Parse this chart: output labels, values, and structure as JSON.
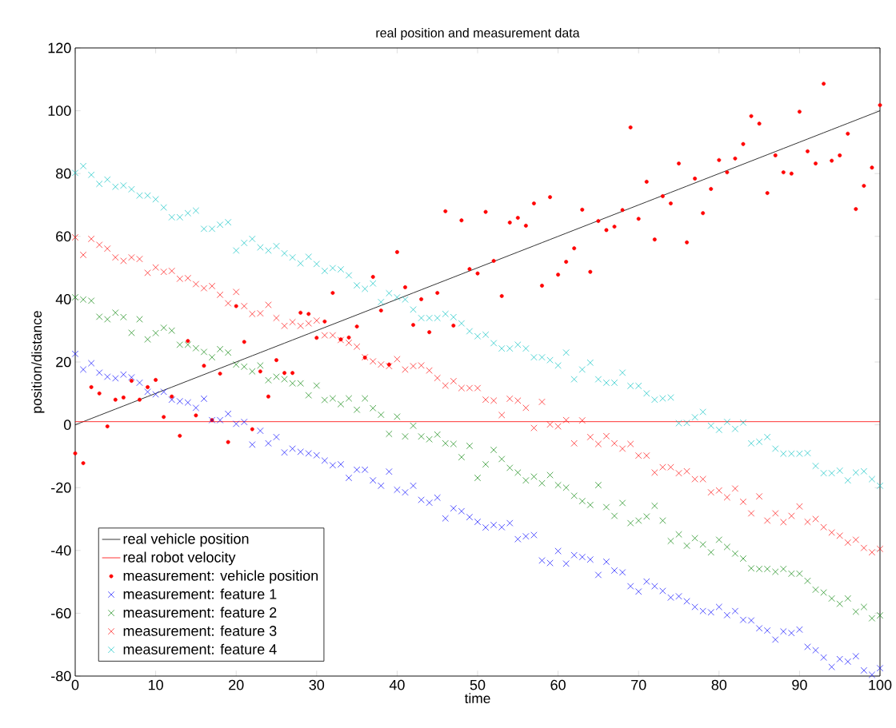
{
  "chart_data": {
    "type": "scatter",
    "title": "real position and measurement data",
    "xlabel": "time",
    "ylabel": "position/distance",
    "xlim": [
      0,
      100
    ],
    "ylim": [
      -80,
      120
    ],
    "xticks": [
      0,
      10,
      20,
      30,
      40,
      50,
      60,
      70,
      80,
      90,
      100
    ],
    "yticks": [
      -80,
      -60,
      -40,
      -20,
      0,
      20,
      40,
      60,
      80,
      100,
      120
    ],
    "legend": "bottom left",
    "x": [
      0,
      1,
      2,
      3,
      4,
      5,
      6,
      7,
      8,
      9,
      10,
      11,
      12,
      13,
      14,
      15,
      16,
      17,
      18,
      19,
      20,
      21,
      22,
      23,
      24,
      25,
      26,
      27,
      28,
      29,
      30,
      31,
      32,
      33,
      34,
      35,
      36,
      37,
      38,
      39,
      40,
      41,
      42,
      43,
      44,
      45,
      46,
      47,
      48,
      49,
      50,
      51,
      52,
      53,
      54,
      55,
      56,
      57,
      58,
      59,
      60,
      61,
      62,
      63,
      64,
      65,
      66,
      67,
      68,
      69,
      70,
      71,
      72,
      73,
      74,
      75,
      76,
      77,
      78,
      79,
      80,
      81,
      82,
      83,
      84,
      85,
      86,
      87,
      88,
      89,
      90,
      91,
      92,
      93,
      94,
      95,
      96,
      97,
      98,
      99,
      100
    ],
    "series": [
      {
        "name": "real vehicle position",
        "type": "line",
        "color": "#000000",
        "marker": "none",
        "values": [
          0,
          1,
          2,
          3,
          4,
          5,
          6,
          7,
          8,
          9,
          10,
          11,
          12,
          13,
          14,
          15,
          16,
          17,
          18,
          19,
          20,
          21,
          22,
          23,
          24,
          25,
          26,
          27,
          28,
          29,
          30,
          31,
          32,
          33,
          34,
          35,
          36,
          37,
          38,
          39,
          40,
          41,
          42,
          43,
          44,
          45,
          46,
          47,
          48,
          49,
          50,
          51,
          52,
          53,
          54,
          55,
          56,
          57,
          58,
          59,
          60,
          61,
          62,
          63,
          64,
          65,
          66,
          67,
          68,
          69,
          70,
          71,
          72,
          73,
          74,
          75,
          76,
          77,
          78,
          79,
          80,
          81,
          82,
          83,
          84,
          85,
          86,
          87,
          88,
          89,
          90,
          91,
          92,
          93,
          94,
          95,
          96,
          97,
          98,
          99,
          100
        ]
      },
      {
        "name": "real robot velocity",
        "type": "line",
        "color": "#ff0000",
        "marker": "none",
        "values": [
          1,
          1,
          1,
          1,
          1,
          1,
          1,
          1,
          1,
          1,
          1,
          1,
          1,
          1,
          1,
          1,
          1,
          1,
          1,
          1,
          1,
          1,
          1,
          1,
          1,
          1,
          1,
          1,
          1,
          1,
          1,
          1,
          1,
          1,
          1,
          1,
          1,
          1,
          1,
          1,
          1,
          1,
          1,
          1,
          1,
          1,
          1,
          1,
          1,
          1,
          1,
          1,
          1,
          1,
          1,
          1,
          1,
          1,
          1,
          1,
          1,
          1,
          1,
          1,
          1,
          1,
          1,
          1,
          1,
          1,
          1,
          1,
          1,
          1,
          1,
          1,
          1,
          1,
          1,
          1,
          1,
          1,
          1,
          1,
          1,
          1,
          1,
          1,
          1,
          1,
          1,
          1,
          1,
          1,
          1,
          1,
          1,
          1,
          1,
          1,
          1
        ]
      },
      {
        "name": "measurement: vehicle position",
        "type": "scatter",
        "color": "#ff0000",
        "marker": "circle",
        "values": [
          -9.1,
          -12.2,
          12,
          10,
          -0.5,
          8,
          8.7,
          14,
          8,
          12,
          14.3,
          2.5,
          9,
          -3.5,
          26.7,
          3,
          18.8,
          1.5,
          16.3,
          -5.5,
          37.8,
          26.4,
          -1.4,
          17,
          9,
          20.6,
          16.5,
          16.5,
          35.7,
          35.3,
          27.7,
          32.9,
          42,
          27.2,
          27.8,
          31.3,
          21.4,
          47.1,
          36.4,
          19.2,
          55,
          43.8,
          31.8,
          40,
          29.5,
          42,
          68,
          31.6,
          65.1,
          49.6,
          48.2,
          67.8,
          52.2,
          41,
          64.4,
          65.9,
          63.4,
          70.5,
          44.3,
          72.5,
          47.8,
          51.9,
          56.2,
          68.5,
          48.7,
          64.9,
          62,
          63.1,
          68.4,
          94.7,
          65.6,
          77.4,
          59,
          72.8,
          70.5,
          83.2,
          58.1,
          78.4,
          67.4,
          75.1,
          84.3,
          80.4,
          84.8,
          89.4,
          98.3,
          95.9,
          73.8,
          85.8,
          80.4,
          80,
          99.7,
          87.1,
          83.2,
          108.6,
          84.1,
          85.8,
          92.7,
          68.7,
          76.1,
          81.9,
          101.8
        ]
      },
      {
        "name": "measurement: feature 1",
        "type": "scatter",
        "color": "#0000ff",
        "marker": "cross",
        "values": [
          22.6,
          17.6,
          19.6,
          16.6,
          15.3,
          14.8,
          16,
          15.1,
          13.4,
          10.5,
          9.7,
          10.5,
          8,
          7.5,
          7.1,
          5.4,
          8.3,
          1.5,
          1.5,
          3.5,
          0.3,
          0.9,
          -6.3,
          -1.9,
          -5.9,
          -3.9,
          -8.8,
          -7.6,
          -8.6,
          -9.1,
          -9.7,
          -11.4,
          -12.9,
          -12.6,
          -16.9,
          -14.3,
          -14.3,
          -17.7,
          -19.4,
          -14.9,
          -20.7,
          -21.5,
          -19.4,
          -23.9,
          -24.8,
          -23.2,
          -29.8,
          -26.6,
          -27.5,
          -29.4,
          -30.9,
          -32.7,
          -31.9,
          -32.6,
          -31.3,
          -36.4,
          -35.5,
          -35.1,
          -43.2,
          -44,
          -40.2,
          -44.2,
          -41.5,
          -42.1,
          -42.9,
          -47.8,
          -43.6,
          -46.4,
          -47,
          -51.4,
          -53.1,
          -49.9,
          -51.4,
          -52.9,
          -55,
          -54.6,
          -56.2,
          -58,
          -59.3,
          -59.7,
          -58,
          -60.6,
          -59.3,
          -62.1,
          -62.3,
          -64.8,
          -65.5,
          -68.4,
          -65.8,
          -66.3,
          -65.2,
          -70.7,
          -71.8,
          -74.1,
          -77.1,
          -74.6,
          -75.4,
          -73.7,
          -78.2,
          -79.6,
          -77.5
        ]
      },
      {
        "name": "measurement: feature 2",
        "type": "scatter",
        "color": "#008000",
        "marker": "cross",
        "values": [
          40.6,
          39.9,
          39.5,
          34.4,
          33.6,
          35.7,
          34.3,
          29.3,
          33.6,
          27.2,
          29.2,
          30.9,
          30,
          25.5,
          25.5,
          24.4,
          23.2,
          21.5,
          24.1,
          23,
          19.2,
          18.5,
          17,
          18.9,
          14.2,
          15.3,
          14.5,
          13.2,
          13.2,
          9.4,
          12.5,
          7.9,
          8.4,
          6.6,
          8.4,
          4.8,
          8.4,
          5.3,
          3.2,
          -2.9,
          2.6,
          -3.7,
          -0.3,
          -3.7,
          -4.6,
          -3.1,
          -5.9,
          -6.1,
          -10.3,
          -6.7,
          -16.9,
          -12.6,
          -8,
          -10.9,
          -13.7,
          -15.2,
          -17.7,
          -16.5,
          -18.6,
          -16,
          -19.2,
          -20,
          -22.6,
          -24.3,
          -25.5,
          -19.2,
          -26.2,
          -29,
          -24.9,
          -31.3,
          -30.5,
          -29.2,
          -25.8,
          -30.5,
          -37,
          -34.9,
          -38.5,
          -36.1,
          -38.1,
          -40.6,
          -36.6,
          -38.9,
          -41,
          -42.6,
          -45.7,
          -45.9,
          -45.9,
          -46.8,
          -45.9,
          -47.4,
          -47.4,
          -49.7,
          -52.5,
          -53.4,
          -55.3,
          -57,
          -55.3,
          -59.5,
          -58,
          -61.6,
          -60.7
        ]
      },
      {
        "name": "measurement: feature 3",
        "type": "scatter",
        "color": "#ff0000",
        "marker": "cross",
        "values": [
          59.7,
          54.1,
          59.2,
          57.3,
          56.1,
          53.3,
          52.2,
          53.3,
          52.8,
          48.4,
          50.1,
          48.7,
          49,
          46.5,
          46.7,
          44.8,
          43.5,
          44.2,
          41.4,
          38.7,
          42.3,
          37.8,
          35.3,
          35.5,
          38.2,
          34,
          31.5,
          32.7,
          31.5,
          32.3,
          33.2,
          28.5,
          28.5,
          27,
          26.1,
          24.9,
          21.5,
          20.2,
          19.2,
          18.7,
          20.9,
          17.6,
          18.7,
          18.9,
          17.3,
          14.9,
          12.5,
          13.9,
          11.7,
          11.7,
          11.7,
          8,
          7.7,
          3.1,
          8.3,
          7.7,
          5.4,
          -1,
          7.3,
          0.1,
          -0.5,
          1.5,
          -5.9,
          1.4,
          -3.9,
          -6.1,
          -3.6,
          -5.9,
          -7.6,
          -6.1,
          -9.8,
          -9.8,
          -15.2,
          -13.5,
          -13.5,
          -15.4,
          -14.8,
          -17.3,
          -17.3,
          -21.5,
          -20.9,
          -23.1,
          -20.3,
          -24.5,
          -28.2,
          -22.8,
          -30.5,
          -28.2,
          -31,
          -29,
          -26,
          -30.9,
          -30,
          -32.6,
          -34.3,
          -35.3,
          -37.5,
          -36.6,
          -39.2,
          -40.6,
          -39.5
        ]
      },
      {
        "name": "measurement: feature 4",
        "type": "scatter",
        "color": "#00bfbf",
        "marker": "cross",
        "values": [
          80.2,
          82.4,
          79.6,
          76.7,
          78.1,
          75.8,
          76.2,
          75,
          73,
          73,
          71.8,
          69.2,
          66.1,
          66.1,
          67.4,
          68.2,
          62.4,
          62.4,
          63.7,
          64.5,
          55.5,
          57.9,
          59.2,
          56.5,
          55.5,
          56.9,
          54.6,
          53.3,
          51.4,
          53.5,
          51.2,
          49,
          49.9,
          49.5,
          47.6,
          44.4,
          43.3,
          45,
          39.1,
          41.9,
          40.6,
          39.9,
          36.7,
          34,
          34,
          34,
          35.3,
          34.3,
          32.3,
          29.8,
          28.2,
          28.7,
          26,
          24.3,
          24.3,
          25.5,
          24.3,
          21.5,
          21.5,
          20.6,
          18.9,
          23,
          14.5,
          17.6,
          19.8,
          14.5,
          13.4,
          13.4,
          16.6,
          12.4,
          12.4,
          10,
          8,
          8.4,
          8.7,
          0.5,
          0.6,
          2.4,
          4.1,
          -0.3,
          -1.6,
          0.9,
          -1.3,
          0.7,
          -5.9,
          -5.4,
          -3.9,
          -7.6,
          -9.2,
          -9.2,
          -9.2,
          -9,
          -13.1,
          -15.4,
          -15.4,
          -14.6,
          -17.7,
          -15.2,
          -14.8,
          -17.3,
          -19.4
        ]
      }
    ]
  }
}
